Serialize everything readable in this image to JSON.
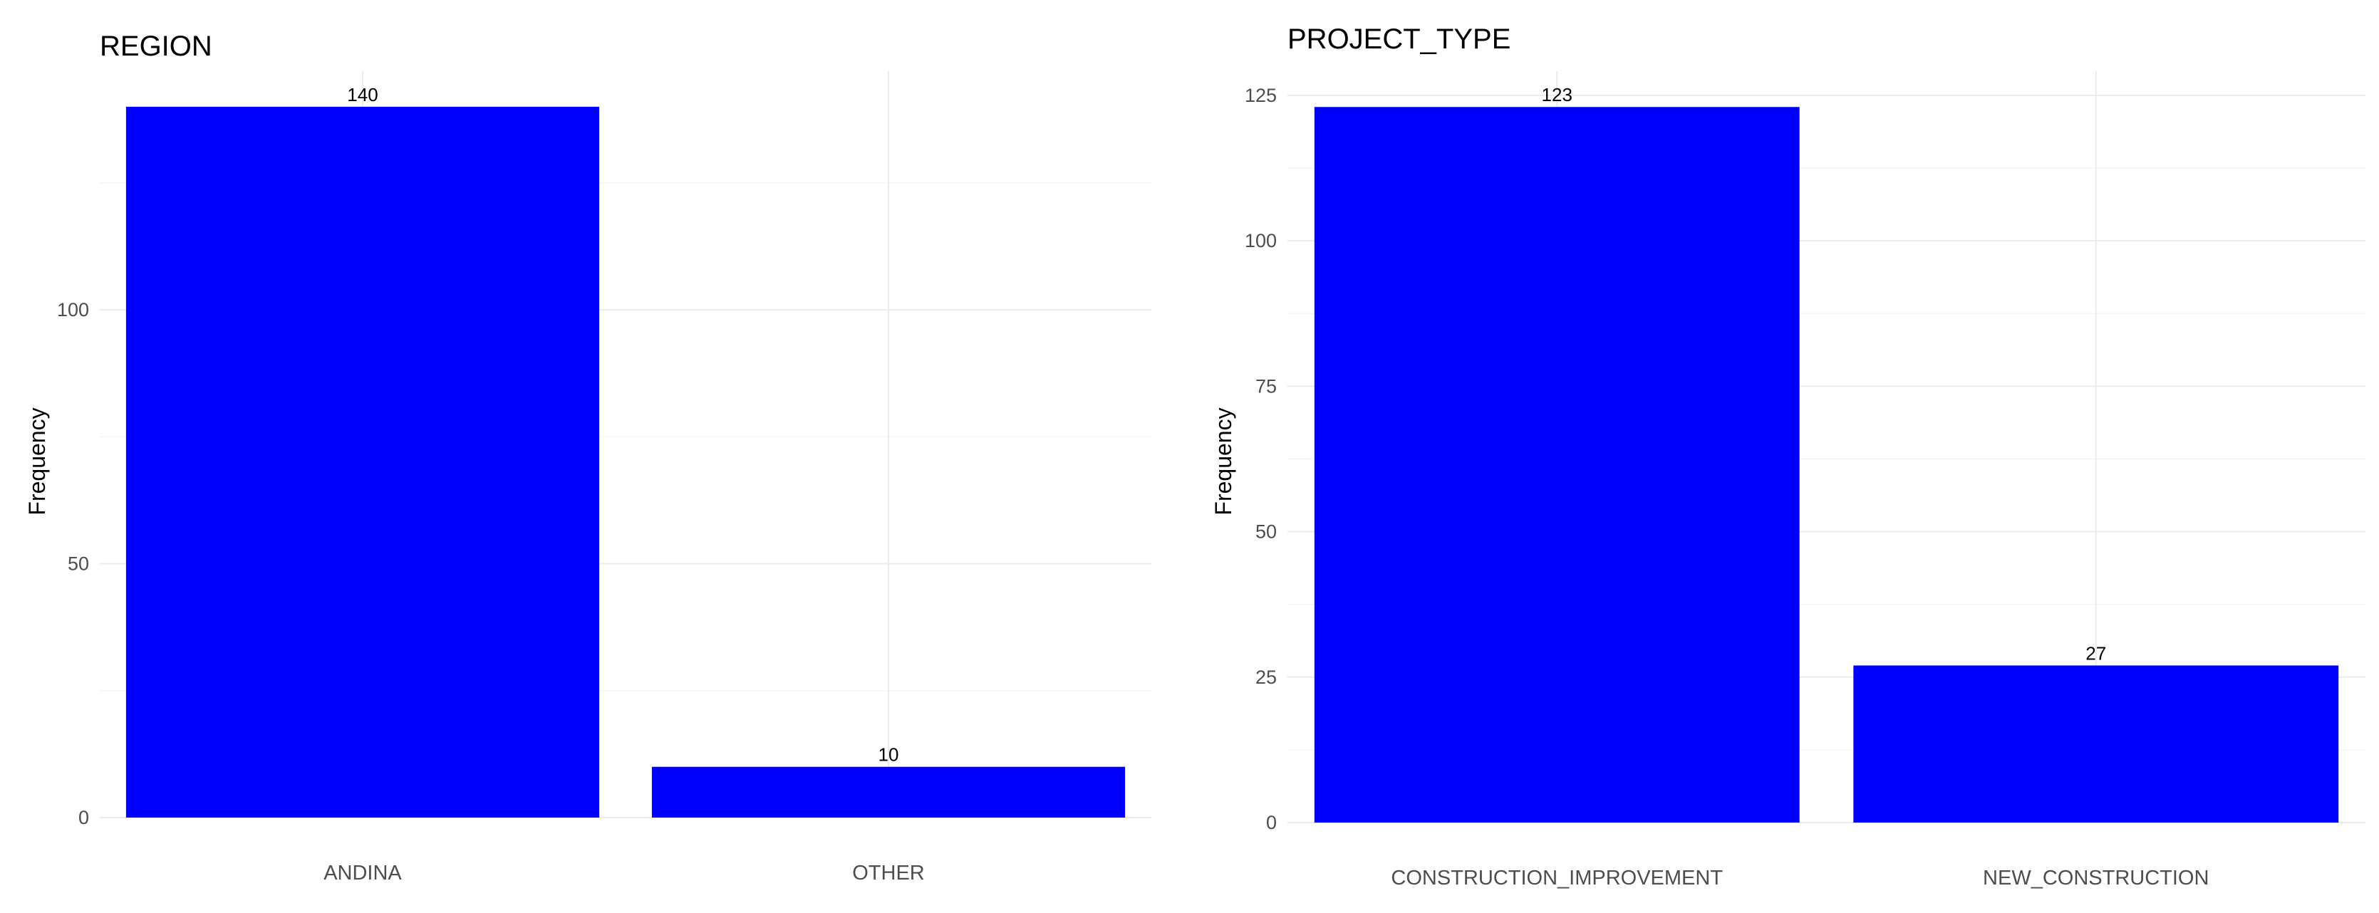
{
  "chart_data": [
    {
      "type": "bar",
      "title": "REGION",
      "xlabel": "",
      "ylabel": "Frequency",
      "categories": [
        "ANDINA",
        "OTHER"
      ],
      "values": [
        140,
        10
      ],
      "value_labels": [
        "140",
        "10"
      ],
      "ylim": [
        0,
        147
      ],
      "yticks": [
        0,
        50,
        100
      ],
      "ytick_labels": [
        "0",
        "50",
        "100"
      ],
      "bar_color": "#0000ff",
      "grid": true,
      "legend": "none"
    },
    {
      "type": "bar",
      "title": "PROJECT_TYPE",
      "xlabel": "",
      "ylabel": "Frequency",
      "categories": [
        "CONSTRUCTION_IMPROVEMENT",
        "NEW_CONSTRUCTION"
      ],
      "values": [
        123,
        27
      ],
      "value_labels": [
        "123",
        "27"
      ],
      "ylim": [
        0,
        129.15
      ],
      "yticks": [
        0,
        25,
        50,
        75,
        100,
        125
      ],
      "ytick_labels": [
        "0",
        "25",
        "50",
        "75",
        "100",
        "125"
      ],
      "bar_color": "#0000ff",
      "grid": true,
      "legend": "none"
    }
  ]
}
